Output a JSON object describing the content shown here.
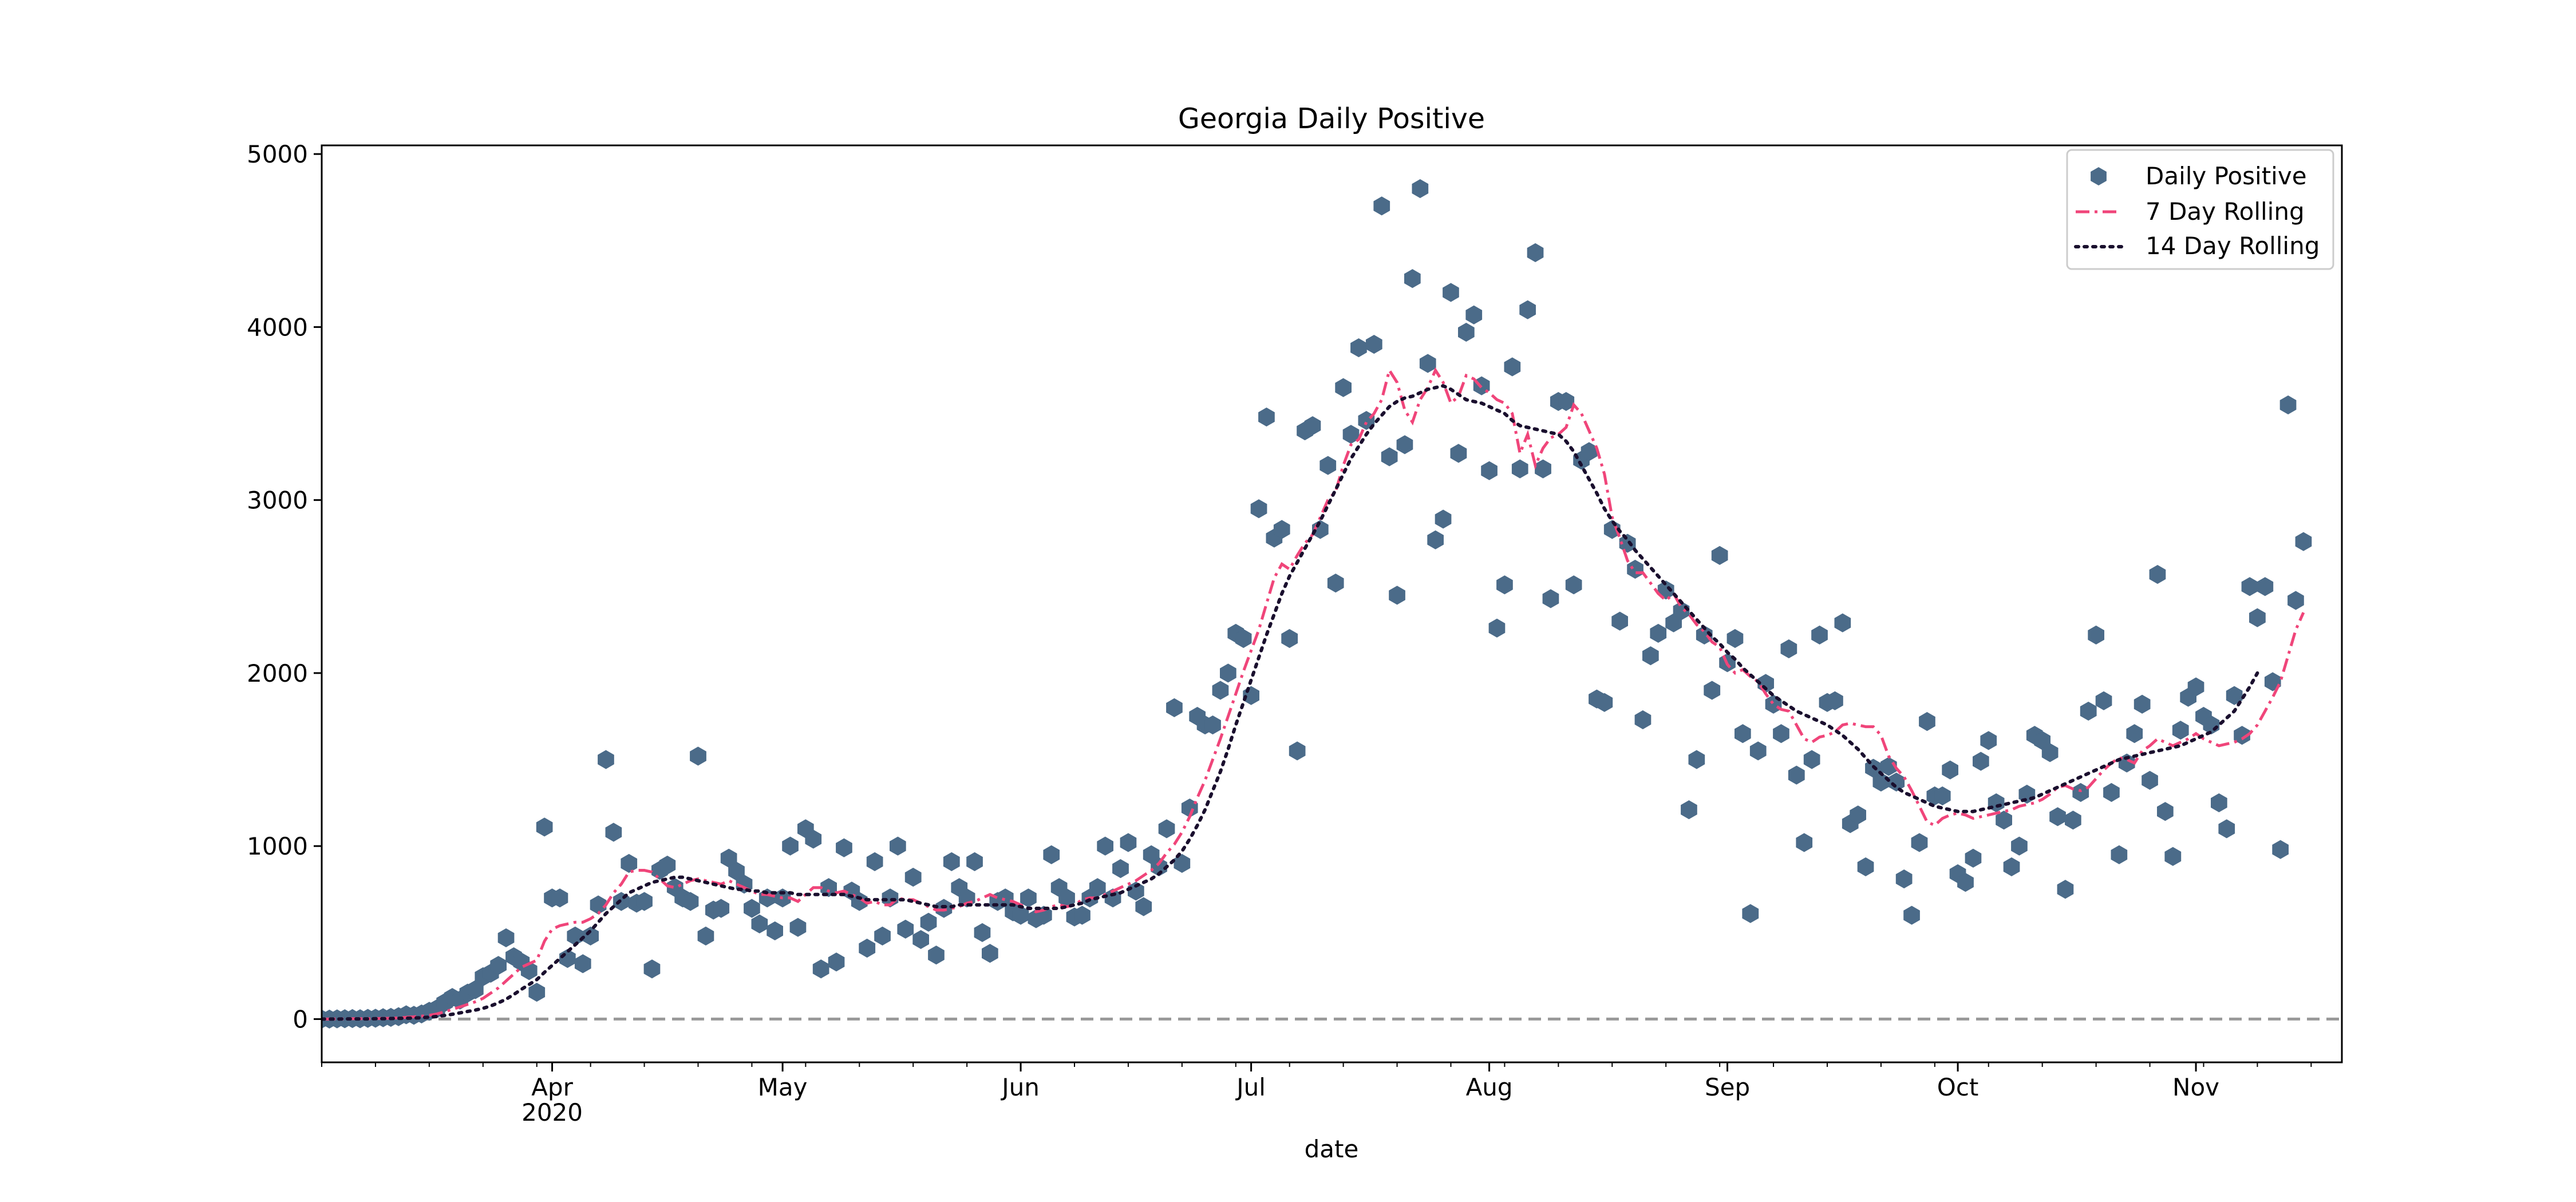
{
  "chart_data": {
    "type": "scatter",
    "title": "Georgia Daily Positive",
    "xlabel": "date",
    "ylabel": "",
    "ylim": [
      -250,
      5050
    ],
    "xlim": [
      "2020-03-02",
      "2020-11-20"
    ],
    "grid": false,
    "legend_position": "top-right",
    "x_ticks": [
      {
        "date": "2020-04-01",
        "label": "Apr",
        "sublabel": "2020"
      },
      {
        "date": "2020-05-01",
        "label": "May"
      },
      {
        "date": "2020-06-01",
        "label": "Jun"
      },
      {
        "date": "2020-07-01",
        "label": "Jul"
      },
      {
        "date": "2020-08-01",
        "label": "Aug"
      },
      {
        "date": "2020-09-01",
        "label": "Sep"
      },
      {
        "date": "2020-10-01",
        "label": "Oct"
      },
      {
        "date": "2020-11-01",
        "label": "Nov"
      }
    ],
    "y_ticks": [
      {
        "value": 0,
        "label": "0"
      },
      {
        "value": 1000,
        "label": "1000"
      },
      {
        "value": 2000,
        "label": "2000"
      },
      {
        "value": 3000,
        "label": "3000"
      },
      {
        "value": 4000,
        "label": "4000"
      },
      {
        "value": 5000,
        "label": "5000"
      }
    ],
    "reference_line": {
      "y": 0,
      "color": "#999999",
      "style": "dashed"
    },
    "start_date": "2020-03-02",
    "series": [
      {
        "name": "Daily Positive",
        "kind": "scatter",
        "marker": "hexagon",
        "color": "#4b6b89",
        "values": [
          0,
          0,
          1,
          2,
          3,
          2,
          4,
          5,
          8,
          10,
          14,
          25,
          22,
          30,
          45,
          60,
          95,
          125,
          110,
          150,
          170,
          245,
          265,
          310,
          470,
          360,
          330,
          280,
          155,
          1110,
          700,
          700,
          350,
          480,
          320,
          480,
          660,
          1500,
          1080,
          680,
          900,
          670,
          680,
          290,
          860,
          890,
          760,
          700,
          680,
          1520,
          480,
          630,
          640,
          930,
          855,
          780,
          640,
          550,
          700,
          510,
          700,
          1000,
          530,
          1100,
          1040,
          290,
          760,
          330,
          990,
          740,
          680,
          410,
          910,
          480,
          700,
          1000,
          520,
          820,
          460,
          560,
          370,
          640,
          910,
          760,
          700,
          910,
          500,
          380,
          680,
          700,
          620,
          600,
          700,
          580,
          600,
          950,
          760,
          700,
          590,
          600,
          700,
          760,
          1000,
          700,
          870,
          1020,
          740,
          650,
          950,
          880,
          1100,
          1800,
          900,
          1220,
          1750,
          1700,
          1700,
          1900,
          2000,
          2230,
          2200,
          1870,
          2950,
          3480,
          2780,
          2830,
          2200,
          1550,
          3400,
          3430,
          2830,
          3200,
          2520,
          3650,
          3380,
          3880,
          3460,
          3900,
          4700,
          3250,
          2450,
          3320,
          4280,
          4800,
          3790,
          2770,
          2890,
          4200,
          3270,
          3970,
          4070,
          3660,
          3170,
          2260,
          2510,
          3770,
          3180,
          4100,
          4430,
          3180,
          2430,
          3570,
          3570,
          2510,
          3230,
          3280,
          1850,
          1830,
          2830,
          2300,
          2750,
          2600,
          1730,
          2100,
          2230,
          2480,
          2290,
          2360,
          1210,
          1500,
          2220,
          1900,
          2680,
          2060,
          2200,
          1650,
          610,
          1550,
          1940,
          1820,
          1650,
          2140,
          1410,
          1020,
          1500,
          2220,
          1830,
          1840,
          2290,
          1130,
          1180,
          880,
          1450,
          1370,
          1460,
          1370,
          810,
          600,
          1020,
          1720,
          1290,
          1290,
          1440,
          840,
          790,
          930,
          1490,
          1610,
          1250,
          1150,
          880,
          1000,
          1300,
          1640,
          1610,
          1540,
          1170,
          750,
          1150,
          1310,
          1780,
          2220,
          1840,
          1310,
          950,
          1480,
          1650,
          1820,
          1380,
          2570,
          1200,
          940,
          1670,
          1860,
          1920,
          1750,
          1700,
          1250,
          1100,
          1870,
          1640,
          2500,
          2320,
          2500,
          1950,
          980,
          3550,
          2420,
          2760
        ]
      },
      {
        "name": "7 Day Rolling",
        "kind": "line",
        "style": "dashdot",
        "color": "#f0457a",
        "values": [
          0,
          0,
          1,
          1,
          2,
          2,
          2,
          3,
          4,
          5,
          7,
          10,
          13,
          17,
          22,
          30,
          42,
          56,
          70,
          85,
          100,
          120,
          150,
          180,
          220,
          260,
          300,
          320,
          340,
          450,
          520,
          540,
          550,
          560,
          560,
          580,
          610,
          660,
          730,
          780,
          850,
          860,
          860,
          850,
          810,
          770,
          760,
          780,
          800,
          810,
          800,
          790,
          780,
          800,
          780,
          760,
          740,
          720,
          720,
          710,
          700,
          700,
          680,
          720,
          760,
          760,
          740,
          730,
          740,
          720,
          700,
          670,
          680,
          660,
          660,
          700,
          690,
          690,
          670,
          650,
          630,
          630,
          640,
          650,
          670,
          680,
          700,
          720,
          700,
          690,
          680,
          660,
          640,
          620,
          630,
          650,
          660,
          650,
          660,
          690,
          700,
          700,
          720,
          740,
          760,
          780,
          800,
          830,
          860,
          900,
          960,
          1010,
          1080,
          1170,
          1280,
          1380,
          1500,
          1620,
          1750,
          1880,
          2010,
          2130,
          2250,
          2400,
          2550,
          2630,
          2600,
          2680,
          2750,
          2800,
          2900,
          3000,
          3050,
          3200,
          3320,
          3350,
          3450,
          3500,
          3580,
          3750,
          3680,
          3520,
          3450,
          3580,
          3650,
          3750,
          3680,
          3560,
          3600,
          3720,
          3700,
          3650,
          3620,
          3580,
          3560,
          3500,
          3270,
          3380,
          3200,
          3300,
          3360,
          3380,
          3420,
          3550,
          3500,
          3400,
          3300,
          3150,
          2900,
          2780,
          2650,
          2580,
          2580,
          2520,
          2460,
          2420,
          2460,
          2380,
          2340,
          2280,
          2240,
          2180,
          2150,
          2050,
          2000,
          2020,
          1980,
          1950,
          1880,
          1820,
          1790,
          1780,
          1700,
          1620,
          1600,
          1630,
          1640,
          1660,
          1700,
          1710,
          1700,
          1690,
          1690,
          1640,
          1520,
          1450,
          1400,
          1320,
          1230,
          1140,
          1120,
          1160,
          1180,
          1190,
          1180,
          1160,
          1170,
          1180,
          1190,
          1200,
          1210,
          1230,
          1240,
          1250,
          1270,
          1300,
          1340,
          1350,
          1330,
          1320,
          1340,
          1390,
          1440,
          1480,
          1510,
          1500,
          1480,
          1550,
          1580,
          1620,
          1600,
          1580,
          1600,
          1620,
          1650,
          1620,
          1600,
          1580,
          1590,
          1600,
          1620,
          1650,
          1700,
          1780,
          1860,
          1950,
          2100,
          2250,
          2350
        ]
      },
      {
        "name": "14 Day Rolling",
        "kind": "line",
        "style": "dotted",
        "color": "#1a0f2e",
        "values": [
          0,
          0,
          0,
          1,
          1,
          1,
          1,
          2,
          2,
          3,
          4,
          5,
          6,
          8,
          11,
          15,
          21,
          28,
          36,
          44,
          52,
          62,
          76,
          94,
          115,
          142,
          172,
          200,
          228,
          270,
          310,
          350,
          390,
          430,
          470,
          510,
          560,
          610,
          650,
          690,
          730,
          750,
          770,
          790,
          800,
          810,
          820,
          820,
          810,
          800,
          790,
          780,
          770,
          760,
          750,
          750,
          740,
          740,
          730,
          730,
          730,
          730,
          720,
          720,
          720,
          720,
          720,
          720,
          720,
          710,
          700,
          690,
          690,
          690,
          690,
          690,
          690,
          680,
          670,
          660,
          650,
          650,
          650,
          660,
          660,
          660,
          660,
          660,
          660,
          660,
          660,
          650,
          640,
          640,
          640,
          640,
          640,
          650,
          660,
          670,
          690,
          700,
          710,
          720,
          730,
          750,
          770,
          790,
          810,
          840,
          880,
          920,
          970,
          1040,
          1120,
          1210,
          1320,
          1430,
          1560,
          1700,
          1830,
          1960,
          2090,
          2220,
          2340,
          2460,
          2560,
          2640,
          2720,
          2800,
          2880,
          2970,
          3060,
          3150,
          3240,
          3310,
          3380,
          3440,
          3490,
          3540,
          3570,
          3590,
          3600,
          3620,
          3640,
          3650,
          3660,
          3640,
          3610,
          3580,
          3570,
          3560,
          3540,
          3520,
          3500,
          3460,
          3430,
          3420,
          3410,
          3400,
          3390,
          3380,
          3340,
          3280,
          3200,
          3120,
          3040,
          2950,
          2880,
          2820,
          2770,
          2710,
          2660,
          2610,
          2560,
          2510,
          2460,
          2410,
          2360,
          2310,
          2260,
          2210,
          2170,
          2120,
          2080,
          2030,
          1990,
          1950,
          1910,
          1870,
          1840,
          1810,
          1780,
          1760,
          1740,
          1720,
          1700,
          1670,
          1640,
          1600,
          1560,
          1510,
          1460,
          1420,
          1380,
          1340,
          1310,
          1290,
          1270,
          1250,
          1230,
          1220,
          1210,
          1200,
          1200,
          1200,
          1210,
          1220,
          1230,
          1240,
          1250,
          1260,
          1270,
          1280,
          1300,
          1320,
          1340,
          1360,
          1380,
          1400,
          1420,
          1440,
          1460,
          1480,
          1500,
          1510,
          1520,
          1530,
          1540,
          1550,
          1560,
          1570,
          1580,
          1600,
          1620,
          1640,
          1660,
          1700,
          1740,
          1780,
          1850,
          1920,
          2000
        ]
      }
    ]
  }
}
